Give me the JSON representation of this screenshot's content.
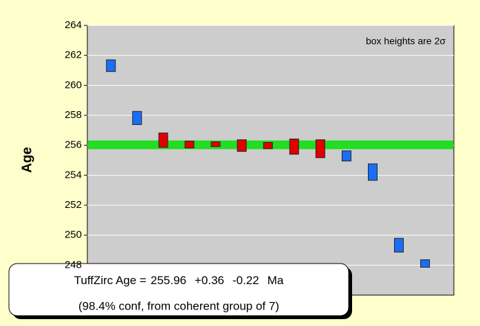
{
  "chart_data": {
    "type": "box-error",
    "ylabel": "Age",
    "categories": [
      null,
      null,
      null,
      null,
      null,
      null,
      null,
      null,
      null,
      null,
      null,
      null,
      null
    ],
    "values": [
      261.31,
      257.82,
      256.34,
      256.05,
      256.07,
      255.98,
      255.98,
      255.91,
      255.77,
      255.29,
      254.21,
      249.33,
      248.11
    ],
    "errors": [
      0.39,
      0.44,
      0.48,
      0.23,
      0.16,
      0.39,
      0.21,
      0.51,
      0.6,
      0.34,
      0.55,
      0.46,
      0.25
    ],
    "colors": [
      "#1a6ef5",
      "#1a6ef5",
      "#e00000",
      "#e00000",
      "#e00000",
      "#e00000",
      "#e00000",
      "#e00000",
      "#e00000",
      "#1a6ef5",
      "#1a6ef5",
      "#1a6ef5",
      "#1a6ef5"
    ],
    "ylim": [
      246,
      264
    ],
    "yticks": [
      248,
      250,
      252,
      254,
      256,
      258,
      260,
      262,
      264
    ],
    "grid": true,
    "note": "box heights are 2σ",
    "age_band_color": "#22dd22",
    "result": {
      "label": "TuffZirc Age  =",
      "age": 255.96,
      "plus": {
        "value": 0.36,
        "label": "+0.36"
      },
      "minus": {
        "value": 0.22,
        "label": "-0.22"
      },
      "unit": "Ma",
      "detail": "(98.4% conf, from coherent group of 7)"
    }
  }
}
